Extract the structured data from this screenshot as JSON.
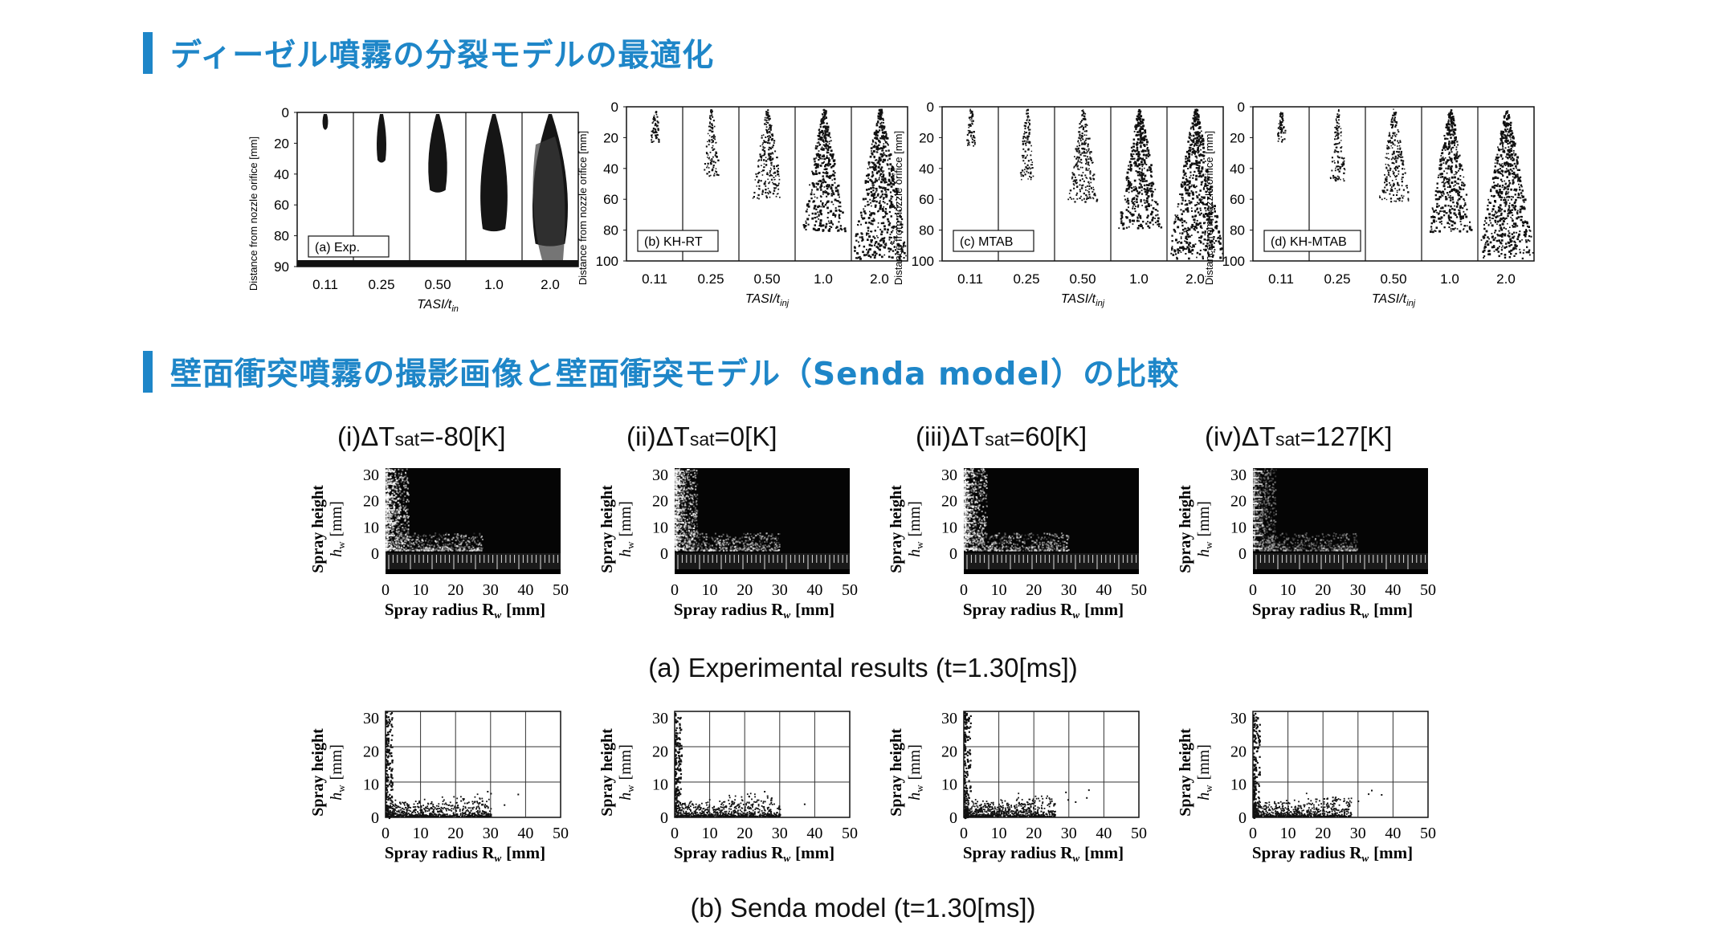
{
  "section1": {
    "title": "ディーゼル噴霧の分裂モデルの最適化",
    "ylabel": "Distance from nozzle orifice  [mm]",
    "panels": [
      {
        "label": "(a) Exp.",
        "yticks": [
          "0",
          "20",
          "40",
          "60",
          "80",
          "90"
        ],
        "xticks": [
          "0.11",
          "0.25",
          "0.50",
          "1.0",
          "2.0"
        ],
        "xlabel": "TASI/t",
        "xlabel_sub": "in"
      },
      {
        "label": "(b) KH-RT",
        "yticks": [
          "0",
          "20",
          "40",
          "60",
          "80",
          "100"
        ],
        "xticks": [
          "0.11",
          "0.25",
          "0.50",
          "1.0",
          "2.0"
        ],
        "xlabel": "TASI/t",
        "xlabel_sub": "inj"
      },
      {
        "label": "(c) MTAB",
        "yticks": [
          "0",
          "20",
          "40",
          "60",
          "80",
          "100"
        ],
        "xticks": [
          "0.11",
          "0.25",
          "0.50",
          "1.0",
          "2.0"
        ],
        "xlabel": "TASI/t",
        "xlabel_sub": "inj"
      },
      {
        "label": "(d) KH-MTAB",
        "yticks": [
          "0",
          "20",
          "40",
          "60",
          "80",
          "100"
        ],
        "xticks": [
          "0.11",
          "0.25",
          "0.50",
          "1.0",
          "2.0"
        ],
        "xlabel": "TASI/t",
        "xlabel_sub": "inj"
      }
    ]
  },
  "section2": {
    "title": "壁面衝突噴霧の撮影画像と壁面衝突モデル（Senda model）の比較",
    "columns": [
      {
        "pre": "(i)ΔT",
        "sub": "sat",
        "post": "=-80[K]"
      },
      {
        "pre": "(ii)ΔT",
        "sub": "sat",
        "post": "=0[K]"
      },
      {
        "pre": "(iii)ΔT",
        "sub": "sat",
        "post": "=60[K]"
      },
      {
        "pre": "(iv)ΔT",
        "sub": "sat",
        "post": "=127[K]"
      }
    ],
    "ylabel_line1": "Spray height",
    "ylabel_line2": "h",
    "ylabel_line2_sub": "w",
    "ylabel_unit": "[mm]",
    "xlabel": "Spray radius R",
    "xlabel_sub": "w",
    "xlabel_unit": "[mm]",
    "yticks": [
      "0",
      "10",
      "20",
      "30"
    ],
    "xticks": [
      "0",
      "10",
      "20",
      "30",
      "40",
      "50"
    ],
    "caption_a": "(a) Experimental results (t=1.30[ms])",
    "caption_b": "(b) Senda model (t=1.30[ms])"
  },
  "colors": {
    "accent": "#1e86c8",
    "ink": "#111111"
  },
  "chart_data": [
    {
      "type": "scatter",
      "title": "ディーゼル噴霧の分裂モデルの最適化",
      "xlabel": "TASI/t_inj",
      "ylabel": "Distance from nozzle orifice [mm]",
      "categories": [
        "0.11",
        "0.25",
        "0.50",
        "1.0",
        "2.0"
      ],
      "series": [
        {
          "name": "(a) Exp.",
          "tip_penetration_mm": [
            10,
            32,
            52,
            78,
            88
          ]
        },
        {
          "name": "(b) KH-RT",
          "tip_penetration_mm": [
            22,
            45,
            60,
            82,
            100
          ]
        },
        {
          "name": "(c) MTAB",
          "tip_penetration_mm": [
            25,
            48,
            62,
            80,
            100
          ]
        },
        {
          "name": "(d) KH-MTAB",
          "tip_penetration_mm": [
            22,
            48,
            62,
            82,
            100
          ]
        }
      ],
      "ylim_mm": [
        0,
        100
      ]
    },
    {
      "type": "scatter",
      "title": "(b) Senda model (t=1.30[ms])",
      "xlabel": "Spray radius R_w [mm]",
      "ylabel": "Spray height h_w [mm]",
      "xlim": [
        0,
        50
      ],
      "ylim": [
        0,
        30
      ],
      "series": [
        {
          "name": "(i)ΔTsat=-80[K]",
          "max_radius_mm": 30,
          "wall_layer_height_mm": 2
        },
        {
          "name": "(ii)ΔTsat=0[K]",
          "max_radius_mm": 30,
          "wall_layer_height_mm": 2
        },
        {
          "name": "(iii)ΔTsat=60[K]",
          "max_radius_mm": 26,
          "wall_layer_height_mm": 3
        },
        {
          "name": "(iv)ΔTsat=127[K]",
          "max_radius_mm": 28,
          "wall_layer_height_mm": 2
        }
      ]
    }
  ]
}
